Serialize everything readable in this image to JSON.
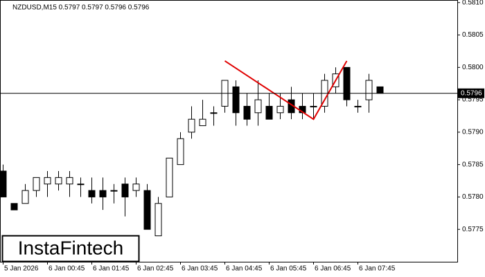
{
  "chart_data": {
    "type": "candlestick",
    "title": "NZDUSD,M15  0.5797 0.5797 0.5796 0.5796",
    "categories": [
      "5 Jan 2026",
      null,
      null,
      null,
      "6 Jan 00:45",
      null,
      null,
      null,
      "6 Jan 01:45",
      null,
      null,
      null,
      "6 Jan 02:45",
      null,
      null,
      null,
      "6 Jan 03:45",
      null,
      null,
      null,
      "6 Jan 04:45",
      null,
      null,
      null,
      "6 Jan 05:45",
      null,
      null,
      null,
      "6 Jan 06:45",
      null,
      null,
      null,
      "6 Jan 07:45",
      null,
      null
    ],
    "open": [
      0.5784,
      0.5779,
      0.5779,
      0.5781,
      0.5782,
      0.5782,
      0.5782,
      0.5782,
      0.5781,
      0.5781,
      0.5781,
      0.5782,
      0.5781,
      0.5781,
      0.5774,
      0.578,
      0.5785,
      0.579,
      0.5791,
      0.5793,
      0.5794,
      0.5797,
      0.5794,
      0.5793,
      0.5794,
      0.5793,
      0.5795,
      0.5794,
      0.5794,
      0.5794,
      0.5797,
      0.58,
      0.5794,
      0.5795,
      0.5797
    ],
    "high": [
      0.5785,
      0.5779,
      0.5782,
      0.5783,
      0.5784,
      0.5784,
      0.5784,
      0.5783,
      0.5783,
      0.5783,
      0.5782,
      0.5783,
      0.5783,
      0.5782,
      0.578,
      0.5786,
      0.579,
      0.5794,
      0.5795,
      0.5794,
      0.5798,
      0.5798,
      0.5796,
      0.5798,
      0.5796,
      0.5796,
      0.5797,
      0.5796,
      0.5796,
      0.5799,
      0.58,
      0.58,
      0.5795,
      0.5799,
      0.5797
    ],
    "low": [
      0.578,
      0.5778,
      0.5779,
      0.578,
      0.578,
      0.5781,
      0.578,
      0.578,
      0.5779,
      0.5778,
      0.5779,
      0.5777,
      0.578,
      0.5775,
      0.5774,
      0.578,
      0.5785,
      0.5789,
      0.5791,
      0.5791,
      0.5793,
      0.5791,
      0.5791,
      0.5791,
      0.5792,
      0.5792,
      0.5792,
      0.5792,
      0.5792,
      0.5793,
      0.5796,
      0.5794,
      0.5793,
      0.5793,
      0.5796
    ],
    "close": [
      0.578,
      0.5778,
      0.5781,
      0.5783,
      0.5783,
      0.5783,
      0.5783,
      0.5782,
      0.578,
      0.578,
      0.5781,
      0.578,
      0.5782,
      0.5775,
      0.5779,
      0.5786,
      0.5789,
      0.5792,
      0.5792,
      0.5793,
      0.5798,
      0.5793,
      0.5792,
      0.5795,
      0.5792,
      0.5794,
      0.5793,
      0.5793,
      0.5794,
      0.5798,
      0.5799,
      0.5795,
      0.5794,
      0.5798,
      0.5796
    ],
    "up_color": "#ffffff",
    "down_color": "#000000",
    "current_price": 0.5796,
    "pattern": {
      "color": "#e00000",
      "index": [
        20,
        28,
        31
      ],
      "values": [
        0.5801,
        0.5792,
        0.5801
      ]
    },
    "ylim": [
      0.577,
      0.58104
    ],
    "yticks": [
      0.5775,
      {
        "value": 0.578,
        "label": "0.5780"
      },
      0.5785,
      {
        "value": 0.579,
        "label": "0.5790"
      },
      0.5795,
      {
        "value": 0.58,
        "label": "0.5800"
      },
      0.5805,
      {
        "value": 0.581,
        "label": "0.5810"
      }
    ],
    "watermark": "InstaFintech"
  }
}
